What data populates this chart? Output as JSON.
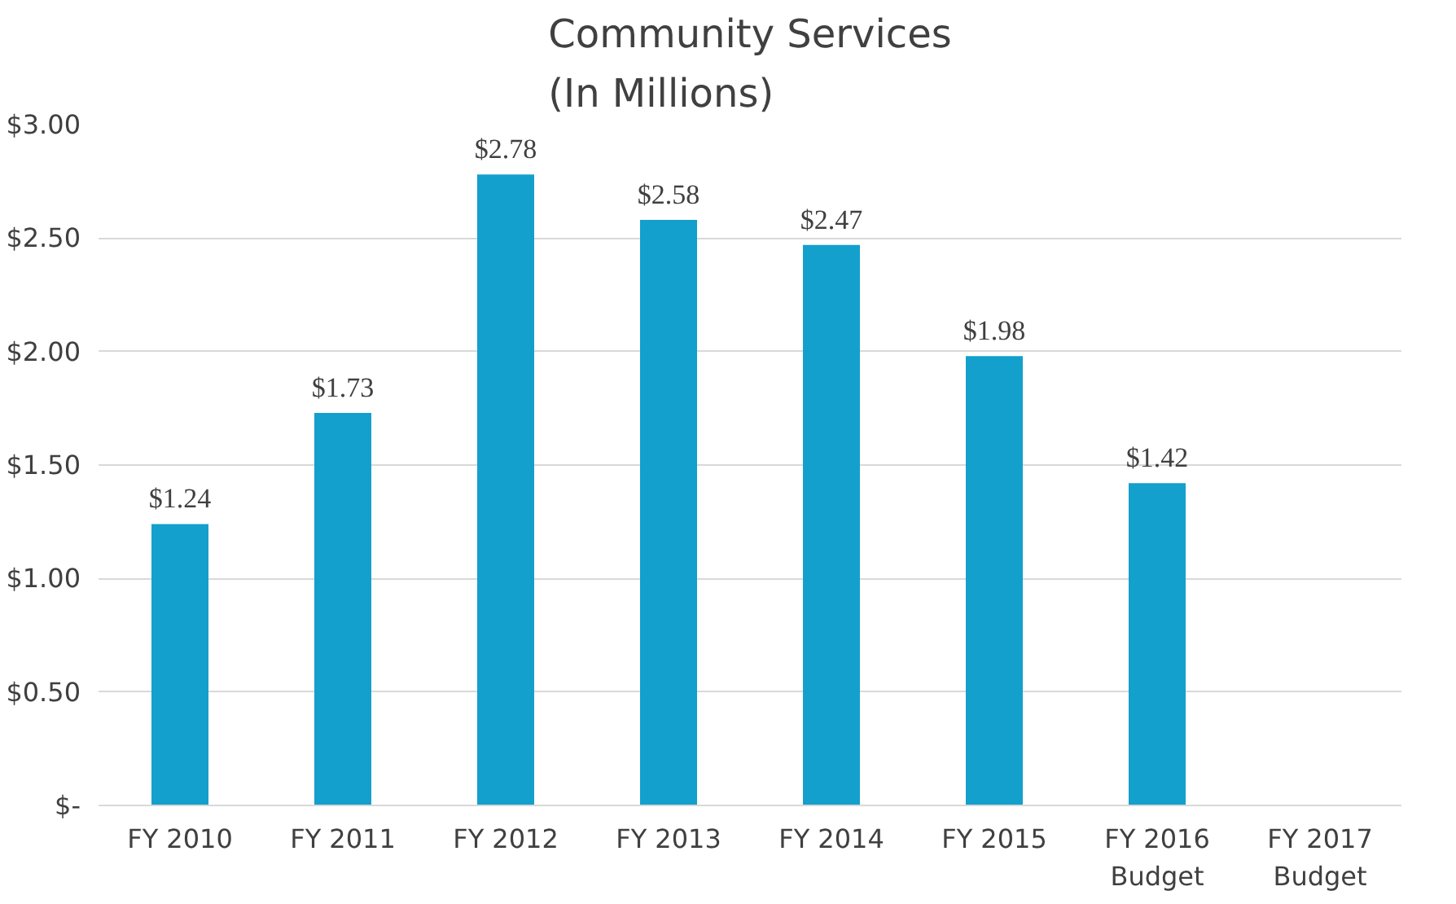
{
  "chart_data": {
    "type": "bar",
    "title": "Community Services\n(In Millions)",
    "categories": [
      "FY 2010",
      "FY 2011",
      "FY 2012",
      "FY 2013",
      "FY 2014",
      "FY 2015",
      "FY 2016\nBudget",
      "FY 2017\nBudget"
    ],
    "values": [
      1.24,
      1.73,
      2.78,
      2.58,
      2.47,
      1.98,
      1.42,
      null
    ],
    "value_labels": [
      "$1.24",
      "$1.73",
      "$2.78",
      "$2.58",
      "$2.47",
      "$1.98",
      "$1.42",
      null
    ],
    "color": "#13a0cc",
    "ylim": [
      0,
      3.0
    ],
    "yticks": [
      {
        "value": 0,
        "label": "$-"
      },
      {
        "value": 0.5,
        "label": "$0.50"
      },
      {
        "value": 1.0,
        "label": "$1.00"
      },
      {
        "value": 1.5,
        "label": "$1.50"
      },
      {
        "value": 2.0,
        "label": "$2.00"
      },
      {
        "value": 2.5,
        "label": "$2.50"
      },
      {
        "value": 3.0,
        "label": "$3.00"
      }
    ],
    "grid": "y"
  }
}
